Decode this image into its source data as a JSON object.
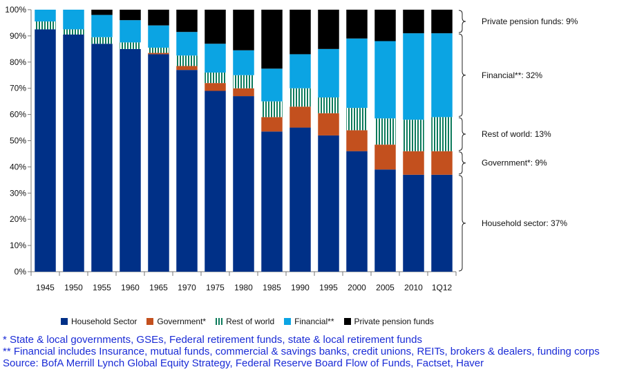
{
  "chart_data": {
    "type": "bar",
    "stacked": true,
    "categories": [
      "1945",
      "1950",
      "1955",
      "1960",
      "1965",
      "1970",
      "1975",
      "1980",
      "1985",
      "1990",
      "1995",
      "2000",
      "2005",
      "2010",
      "1Q12"
    ],
    "ylim": [
      0,
      100
    ],
    "yticks": [
      "0%",
      "10%",
      "20%",
      "30%",
      "40%",
      "50%",
      "60%",
      "70%",
      "80%",
      "90%",
      "100%"
    ],
    "series": [
      {
        "name": "Household Sector",
        "color": "#003087",
        "pattern": "solid",
        "values": [
          92.5,
          90.5,
          87,
          85,
          83,
          77,
          69,
          67,
          53.5,
          55,
          52,
          46,
          39,
          37,
          37
        ]
      },
      {
        "name": "Government*",
        "color": "#c3501e",
        "pattern": "solid",
        "values": [
          0,
          0,
          0,
          0,
          0.5,
          1.5,
          3,
          3,
          5.5,
          8,
          8.5,
          8,
          9.5,
          9,
          9
        ]
      },
      {
        "name": "Rest of world",
        "color": "#0b7a5a",
        "pattern": "vstripes",
        "values": [
          3,
          2,
          2.5,
          2.5,
          2,
          4,
          4,
          5,
          6,
          7,
          6,
          8.5,
          10,
          12,
          13
        ]
      },
      {
        "name": "Financial**",
        "color": "#0ba4e3",
        "pattern": "solid",
        "values": [
          4.5,
          7.5,
          8.5,
          8.5,
          8.5,
          9,
          11,
          9.5,
          12.5,
          13,
          18.5,
          26.5,
          29.5,
          33,
          32
        ]
      },
      {
        "name": "Private pension funds",
        "color": "#000000",
        "pattern": "solid",
        "values": [
          0,
          0,
          2,
          4,
          6,
          8.5,
          13,
          15.5,
          22.5,
          17,
          15,
          11,
          12,
          9,
          9
        ]
      }
    ],
    "annotations": [
      {
        "label": "Private pension funds: 9%",
        "range": [
          91,
          100
        ]
      },
      {
        "label": "Financial**:  32%",
        "range": [
          59,
          91
        ]
      },
      {
        "label": "Rest of world: 13%",
        "range": [
          46,
          59
        ]
      },
      {
        "label": "Government*: 9%",
        "range": [
          37,
          46
        ]
      },
      {
        "label": "Household sector: 37%",
        "range": [
          0,
          37
        ]
      }
    ]
  },
  "notes": [
    "* State & local governments, GSEs, Federal retirement funds, state & local retirement funds",
    "** Financial includes Insurance, mutual funds, commercial & savings banks, credit unions, REITs, brokers & dealers, funding corps",
    "Source: BofA Merrill Lynch Global Equity Strategy, Federal Reserve Board Flow of Funds, Factset, Haver"
  ]
}
